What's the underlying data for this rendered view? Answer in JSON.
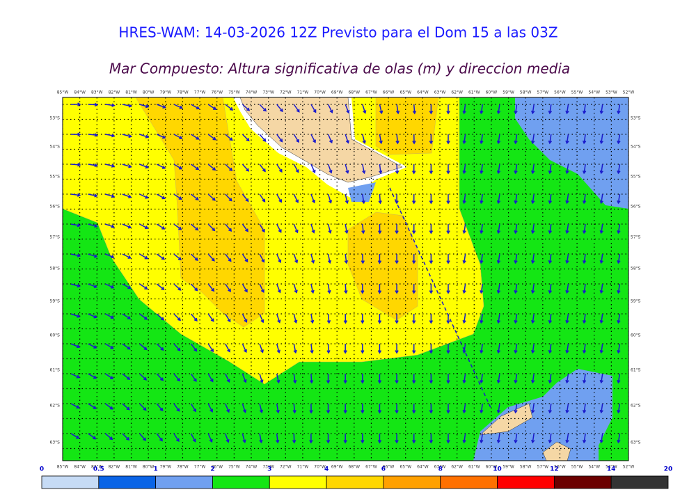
{
  "header": {
    "title": "HRES-WAM: 14-03-2026 12Z Previsto para el Dom 15 a las 03Z",
    "subtitle": "Mar Compuesto: Altura significativa de olas (m) y direccion media"
  },
  "map": {
    "longitudes": [
      "85°W",
      "84°W",
      "83°W",
      "82°W",
      "81°W",
      "80°W",
      "79°W",
      "78°W",
      "77°W",
      "76°W",
      "75°W",
      "74°W",
      "73°W",
      "72°W",
      "71°W",
      "70°W",
      "69°W",
      "68°W",
      "67°W",
      "66°W",
      "65°W",
      "64°W",
      "63°W",
      "62°W",
      "61°W",
      "60°W",
      "59°W",
      "58°W",
      "57°W",
      "56°W",
      "55°W",
      "54°W",
      "53°W",
      "52°W"
    ],
    "latitudes": [
      "53°S",
      "54°S",
      "55°S",
      "56°S",
      "57°S",
      "58°S",
      "59°S",
      "60°S",
      "61°S",
      "62°S",
      "63°S"
    ]
  },
  "colorbar": {
    "ticks": [
      0,
      0.5,
      1,
      2,
      3,
      4,
      6,
      8,
      10,
      12,
      14,
      20
    ],
    "colors": [
      "#c6dbf5",
      "#0a64e6",
      "#70a0f0",
      "#14e614",
      "#ffff00",
      "#ffd700",
      "#ffa000",
      "#ff7000",
      "#ff0000",
      "#6b0000",
      "#333333"
    ]
  }
}
